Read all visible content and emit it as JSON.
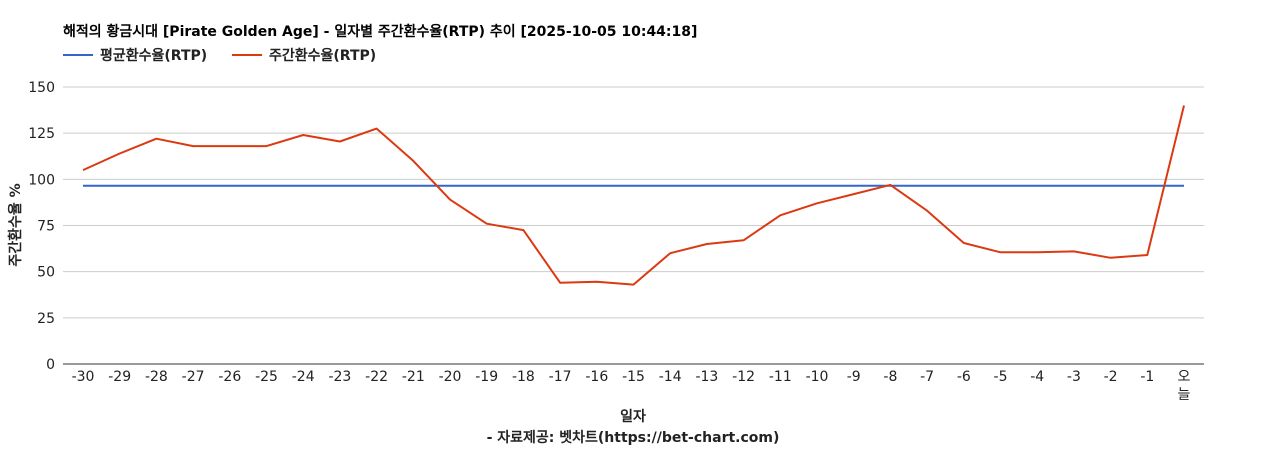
{
  "chart_data": {
    "type": "line",
    "title": "해적의 황금시대 [Pirate Golden Age] - 일자별 주간환수율(RTP) 추이 [2025-10-05 10:44:18]",
    "xlabel": "일자",
    "ylabel": "주간환수율 %",
    "source_note": "- 자료제공: 벳차트(https://bet-chart.com)",
    "ylim": [
      0,
      150
    ],
    "yticks": [
      "0",
      "25",
      "50",
      "75",
      "100",
      "125",
      "150"
    ],
    "categories": [
      "-30",
      "-29",
      "-28",
      "-27",
      "-26",
      "-25",
      "-24",
      "-23",
      "-22",
      "-21",
      "-20",
      "-19",
      "-18",
      "-17",
      "-16",
      "-15",
      "-14",
      "-13",
      "-12",
      "-11",
      "-10",
      "-9",
      "-8",
      "-7",
      "-6",
      "-5",
      "-4",
      "-3",
      "-2",
      "-1",
      "오늘"
    ],
    "series": [
      {
        "name": "평균환수율(RTP)",
        "color": "#3366cc",
        "values": [
          96.5,
          96.5,
          96.5,
          96.5,
          96.5,
          96.5,
          96.5,
          96.5,
          96.5,
          96.5,
          96.5,
          96.5,
          96.5,
          96.5,
          96.5,
          96.5,
          96.5,
          96.5,
          96.5,
          96.5,
          96.5,
          96.5,
          96.5,
          96.5,
          96.5,
          96.5,
          96.5,
          96.5,
          96.5,
          96.5,
          96.5
        ]
      },
      {
        "name": "주간환수율(RTP)",
        "color": "#dc3912",
        "values": [
          105,
          114,
          122,
          118,
          118,
          118,
          124,
          120.5,
          127.5,
          110,
          89,
          76,
          72.5,
          44,
          44.5,
          43,
          60,
          65,
          67,
          80.5,
          87,
          92,
          97,
          83,
          65.5,
          60.5,
          60.5,
          61,
          57.5,
          59,
          140
        ]
      }
    ],
    "grid": true,
    "legend_position": "top-left"
  }
}
